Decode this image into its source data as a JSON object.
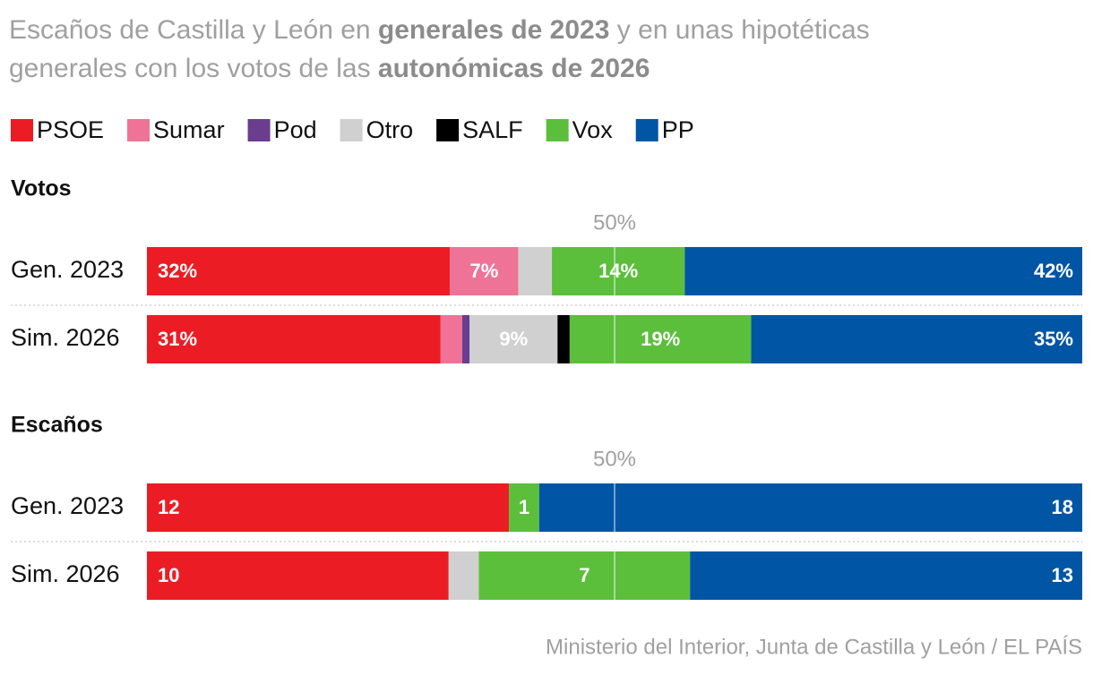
{
  "title_lines": [
    [
      {
        "text": "Escaños de Castilla y León en "
      },
      {
        "text": "generales de 2023",
        "bold": true
      },
      {
        "text": " y en unas hipotéticas"
      }
    ],
    [
      {
        "text": "generales con los votos de las "
      },
      {
        "text": "autonómicas de 2026",
        "bold": true
      }
    ]
  ],
  "source": "Ministerio del Interior, Junta de Castilla y León / EL PAÍS",
  "chart_data": [
    {
      "type": "bar",
      "orientation": "horizontal",
      "stacked": true,
      "title": "Votos",
      "categories": [
        "Gen. 2023",
        "Sim. 2026"
      ],
      "xlim": [
        0,
        100
      ],
      "xticks": [
        {
          "value": 50,
          "label": "50%"
        }
      ],
      "series": [
        {
          "name": "PSOE",
          "color": "#ec1c24",
          "values": [
            32.4,
            31.4
          ],
          "value_labels": [
            "32%",
            "31%"
          ]
        },
        {
          "name": "Sumar",
          "color": "#ef7396",
          "values": [
            7.3,
            2.3
          ],
          "value_labels": [
            "7%",
            null
          ]
        },
        {
          "name": "Pod",
          "color": "#6a3d8f",
          "values": [
            0,
            0.8
          ],
          "value_labels": [
            null,
            null
          ]
        },
        {
          "name": "Otro",
          "color": "#d0d0d0",
          "values": [
            3.6,
            9.4
          ],
          "value_labels": [
            null,
            "9%"
          ]
        },
        {
          "name": "SALF",
          "color": "#000000",
          "values": [
            0,
            1.3
          ],
          "value_labels": [
            null,
            null
          ]
        },
        {
          "name": "Vox",
          "color": "#5bbf3b",
          "values": [
            14.2,
            19.4
          ],
          "value_labels": [
            "14%",
            "19%"
          ]
        },
        {
          "name": "PP",
          "color": "#0055a5",
          "values": [
            42.5,
            35.4
          ],
          "value_labels": [
            "42%",
            "35%"
          ]
        }
      ]
    },
    {
      "type": "bar",
      "orientation": "horizontal",
      "stacked": true,
      "title": "Escaños",
      "categories": [
        "Gen. 2023",
        "Sim. 2026"
      ],
      "xlim": [
        0,
        31
      ],
      "xticks": [
        {
          "value": 15.5,
          "label": "50%"
        }
      ],
      "series": [
        {
          "name": "PSOE",
          "color": "#ec1c24",
          "values": [
            12,
            10
          ]
        },
        {
          "name": "Otro",
          "color": "#d0d0d0",
          "values": [
            0,
            1
          ],
          "value_labels": [
            null,
            null
          ]
        },
        {
          "name": "Vox",
          "color": "#5bbf3b",
          "values": [
            1,
            7
          ]
        },
        {
          "name": "PP",
          "color": "#0055a5",
          "values": [
            18,
            13
          ]
        }
      ]
    }
  ]
}
